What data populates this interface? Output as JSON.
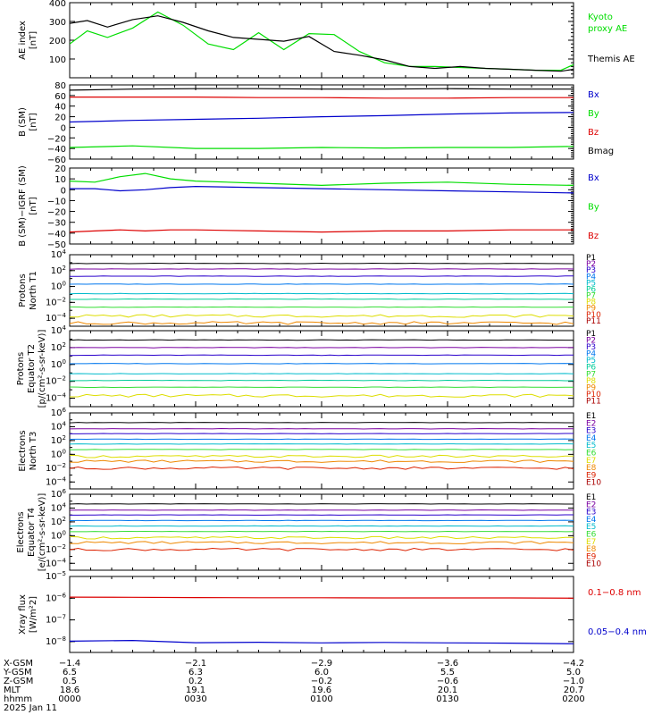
{
  "chart_data": [
    {
      "type": "line",
      "panel_id": "ae",
      "ylabel_lines": [
        "AE index",
        "[nT]"
      ],
      "ylim": [
        0,
        400
      ],
      "yticks": [
        400,
        300,
        200,
        100
      ],
      "ytick_labels": [
        "400",
        "300",
        "200",
        "100"
      ],
      "legend": [
        {
          "label": "Kyoto",
          "color": "#00dd00"
        },
        {
          "label": "proxy AE",
          "color": "#00dd00"
        },
        {
          "label": "Themis AE",
          "color": "#000000"
        }
      ],
      "x_hours": [
        0,
        0.07,
        0.15,
        0.25,
        0.35,
        0.45,
        0.55,
        0.65,
        0.75,
        0.85,
        0.95,
        1.05,
        1.15,
        1.25,
        1.35,
        1.45,
        1.55,
        1.65,
        1.75,
        1.85,
        1.95,
        2.0
      ],
      "series": [
        {
          "name": "Kyoto proxy AE",
          "color": "#00dd00",
          "values": [
            180,
            250,
            215,
            265,
            350,
            280,
            180,
            150,
            240,
            150,
            235,
            230,
            140,
            80,
            60,
            60,
            55,
            50,
            45,
            40,
            40,
            70
          ]
        },
        {
          "name": "Themis AE",
          "color": "#000000",
          "values": [
            290,
            305,
            270,
            310,
            330,
            295,
            250,
            215,
            205,
            195,
            220,
            140,
            120,
            95,
            60,
            50,
            60,
            50,
            45,
            40,
            35,
            45
          ]
        }
      ]
    },
    {
      "type": "line",
      "panel_id": "bsm",
      "ylabel_lines": [
        "B (SM)",
        "[nT]"
      ],
      "ylim": [
        -60,
        80
      ],
      "yticks": [
        80,
        60,
        40,
        20,
        0,
        -20,
        -40,
        -60
      ],
      "ytick_labels": [
        "80",
        "60",
        "40",
        "20",
        "0",
        "−20",
        "−40",
        "−60"
      ],
      "legend": [
        {
          "label": "Bx",
          "color": "#0000cc"
        },
        {
          "label": "By",
          "color": "#00dd00"
        },
        {
          "label": "Bz",
          "color": "#dd0000"
        },
        {
          "label": "Bmag",
          "color": "#000000"
        }
      ],
      "x_hours": [
        0,
        0.25,
        0.5,
        0.75,
        1.0,
        1.25,
        1.5,
        1.75,
        2.0
      ],
      "series": [
        {
          "name": "Bmag",
          "color": "#000000",
          "values": [
            70,
            72,
            73,
            73,
            72,
            72,
            73,
            72,
            72
          ]
        },
        {
          "name": "Bz",
          "color": "#dd0000",
          "values": [
            57,
            57,
            57,
            56,
            56,
            55,
            55,
            56,
            56
          ]
        },
        {
          "name": "Bx",
          "color": "#0000cc",
          "values": [
            10,
            13,
            15,
            17,
            20,
            22,
            25,
            27,
            28
          ]
        },
        {
          "name": "By",
          "color": "#00dd00",
          "values": [
            -38,
            -35,
            -40,
            -40,
            -38,
            -39,
            -38,
            -38,
            -36
          ]
        }
      ]
    },
    {
      "type": "line",
      "panel_id": "bdiff",
      "ylabel_lines": [
        "B (SM)−IGRF (SM)",
        "[nT]"
      ],
      "ylim": [
        -50,
        20
      ],
      "yticks": [
        20,
        10,
        0,
        -10,
        -20,
        -30,
        -40,
        -50
      ],
      "ytick_labels": [
        "20",
        "10",
        "0",
        "−10",
        "−20",
        "−30",
        "−40",
        "−50"
      ],
      "legend": [
        {
          "label": "Bx",
          "color": "#0000cc"
        },
        {
          "label": "By",
          "color": "#00dd00"
        },
        {
          "label": "Bz",
          "color": "#dd0000"
        }
      ],
      "x_hours": [
        0,
        0.1,
        0.2,
        0.3,
        0.4,
        0.5,
        0.75,
        1.0,
        1.25,
        1.5,
        1.75,
        2.0
      ],
      "series": [
        {
          "name": "By",
          "color": "#00dd00",
          "values": [
            8,
            7,
            12,
            15,
            10,
            8,
            6,
            4,
            6,
            7,
            5,
            4
          ]
        },
        {
          "name": "Bx",
          "color": "#0000cc",
          "values": [
            1,
            1,
            -1,
            0,
            2,
            3,
            2,
            1,
            0,
            -1,
            -2,
            -3
          ]
        },
        {
          "name": "Bz",
          "color": "#dd0000",
          "values": [
            -39,
            -38,
            -37,
            -38,
            -37,
            -37,
            -38,
            -39,
            -38,
            -38,
            -37,
            -37
          ]
        }
      ]
    },
    {
      "type": "line",
      "panel_id": "p1",
      "ylabel_lines": [
        "Protons",
        "North T1"
      ],
      "log": true,
      "ylim_exp": [
        -5,
        4
      ],
      "yticks_exp": [
        -4,
        -2,
        0,
        2,
        4
      ],
      "channels": [
        {
          "label": "P1",
          "color": "#000000",
          "log_value": 2.9
        },
        {
          "label": "P2",
          "color": "#7a00a0",
          "log_value": 2.2
        },
        {
          "label": "P3",
          "color": "#2a00cc",
          "log_value": 1.3
        },
        {
          "label": "P4",
          "color": "#0077ee",
          "log_value": 0.3
        },
        {
          "label": "P5",
          "color": "#00bbcc",
          "log_value": -0.9
        },
        {
          "label": "P6",
          "color": "#00cc99",
          "log_value": -1.6
        },
        {
          "label": "P7",
          "color": "#33dd33",
          "log_value": -2.6
        },
        {
          "label": "P8",
          "color": "#dddd00",
          "log_value": -3.7
        },
        {
          "label": "P9",
          "color": "#ee8800",
          "log_value": -4.6
        },
        {
          "label": "P10",
          "color": "#dd2200",
          "log_value": null
        },
        {
          "label": "P11",
          "color": "#aa0000",
          "log_value": null
        }
      ]
    },
    {
      "type": "line",
      "panel_id": "p2",
      "ylabel_lines": [
        "Protons",
        "Equator T2",
        "[p/(cm²-s-sr-keV)]"
      ],
      "log": true,
      "ylim_exp": [
        -5,
        4
      ],
      "yticks_exp": [
        -4,
        -2,
        0,
        2,
        4
      ],
      "channels": [
        {
          "label": "P1",
          "color": "#000000",
          "log_value": 2.9
        },
        {
          "label": "P2",
          "color": "#7a00a0",
          "log_value": 2.0
        },
        {
          "label": "P3",
          "color": "#2a00cc",
          "log_value": 1.1
        },
        {
          "label": "P4",
          "color": "#0077ee",
          "log_value": 0.1
        },
        {
          "label": "P5",
          "color": "#00bbcc",
          "log_value": -1.1
        },
        {
          "label": "P6",
          "color": "#00cc99",
          "log_value": -1.9
        },
        {
          "label": "P7",
          "color": "#33dd33",
          "log_value": -2.7
        },
        {
          "label": "P8",
          "color": "#dddd00",
          "log_value": -3.7
        },
        {
          "label": "P9",
          "color": "#ee8800",
          "log_value": null
        },
        {
          "label": "P10",
          "color": "#dd2200",
          "log_value": null
        },
        {
          "label": "P11",
          "color": "#aa0000",
          "log_value": null
        }
      ]
    },
    {
      "type": "line",
      "panel_id": "e3",
      "ylabel_lines": [
        "Electrons",
        "North T3"
      ],
      "log": true,
      "ylim_exp": [
        -5,
        6
      ],
      "yticks_exp": [
        -4,
        -2,
        0,
        2,
        4,
        6
      ],
      "channels": [
        {
          "label": "E1",
          "color": "#000000",
          "log_value": 4.6
        },
        {
          "label": "E2",
          "color": "#7a00a0",
          "log_value": 3.7
        },
        {
          "label": "E3",
          "color": "#2a00cc",
          "log_value": 3.0
        },
        {
          "label": "E4",
          "color": "#0077ee",
          "log_value": 2.2
        },
        {
          "label": "E5",
          "color": "#00bbcc",
          "log_value": 1.5
        },
        {
          "label": "E6",
          "color": "#33dd33",
          "log_value": 0.7
        },
        {
          "label": "E7",
          "color": "#dddd00",
          "log_value": -0.3
        },
        {
          "label": "E8",
          "color": "#ee8800",
          "log_value": -1.0
        },
        {
          "label": "E9",
          "color": "#dd2200",
          "log_value": -2.0
        },
        {
          "label": "E10",
          "color": "#aa0000",
          "log_value": null
        }
      ]
    },
    {
      "type": "line",
      "panel_id": "e4",
      "ylabel_lines": [
        "Electrons",
        "Equator T4",
        "[e/(cm²-s-sr-keV)]"
      ],
      "log": true,
      "ylim_exp": [
        -5,
        6
      ],
      "yticks_exp": [
        -4,
        -2,
        0,
        2,
        4,
        6
      ],
      "channels": [
        {
          "label": "E1",
          "color": "#000000",
          "log_value": 4.6
        },
        {
          "label": "E2",
          "color": "#7a00a0",
          "log_value": 3.7
        },
        {
          "label": "E3",
          "color": "#2a00cc",
          "log_value": 3.0
        },
        {
          "label": "E4",
          "color": "#0077ee",
          "log_value": 2.2
        },
        {
          "label": "E5",
          "color": "#00bbcc",
          "log_value": 1.4
        },
        {
          "label": "E6",
          "color": "#33dd33",
          "log_value": 0.6
        },
        {
          "label": "E7",
          "color": "#dddd00",
          "log_value": -0.3
        },
        {
          "label": "E8",
          "color": "#ee8800",
          "log_value": -1.0
        },
        {
          "label": "E9",
          "color": "#dd2200",
          "log_value": -2.0
        },
        {
          "label": "E10",
          "color": "#aa0000",
          "log_value": null
        }
      ]
    },
    {
      "type": "line",
      "panel_id": "xray",
      "ylabel_lines": [
        "Xray flux",
        "[W/m²2]"
      ],
      "log": true,
      "ylim_exp": [
        -8.5,
        -5
      ],
      "yticks_exp": [
        -8,
        -7,
        -6,
        -5
      ],
      "legend": [
        {
          "label": "0.1−0.8 nm",
          "color": "#dd0000"
        },
        {
          "label": "0.05−0.4 nm",
          "color": "#0000cc"
        }
      ],
      "x_hours": [
        0,
        0.25,
        0.5,
        0.75,
        1.0,
        1.25,
        1.5,
        1.75,
        2.0
      ],
      "series": [
        {
          "name": "0.1−0.8 nm",
          "color": "#dd0000",
          "log_values": [
            -5.95,
            -5.96,
            -5.97,
            -5.98,
            -5.98,
            -5.99,
            -5.99,
            -5.99,
            -6.0
          ]
        },
        {
          "name": "0.05−0.4 nm",
          "color": "#0000cc",
          "log_values": [
            -7.98,
            -7.95,
            -8.05,
            -8.03,
            -8.06,
            -8.04,
            -8.06,
            -8.07,
            -8.1
          ]
        }
      ]
    }
  ],
  "ephemeris": {
    "row_labels": [
      "X-GSM",
      "Y-GSM",
      "Z-GSM",
      "MLT",
      "hhmm",
      "2025 Jan 11"
    ],
    "columns": [
      {
        "x_hours": 0.0,
        "values": [
          "−1.4",
          "6.5",
          "0.5",
          "18.6",
          "0000"
        ]
      },
      {
        "x_hours": 0.5,
        "values": [
          "−2.1",
          "6.3",
          "0.2",
          "19.1",
          "0030"
        ]
      },
      {
        "x_hours": 1.0,
        "values": [
          "−2.9",
          "6.0",
          "−0.2",
          "19.6",
          "0100"
        ]
      },
      {
        "x_hours": 1.5,
        "values": [
          "−3.6",
          "5.5",
          "−0.6",
          "20.1",
          "0130"
        ]
      },
      {
        "x_hours": 2.0,
        "values": [
          "−4.2",
          "5.0",
          "−1.0",
          "20.7",
          "0200"
        ]
      }
    ]
  }
}
